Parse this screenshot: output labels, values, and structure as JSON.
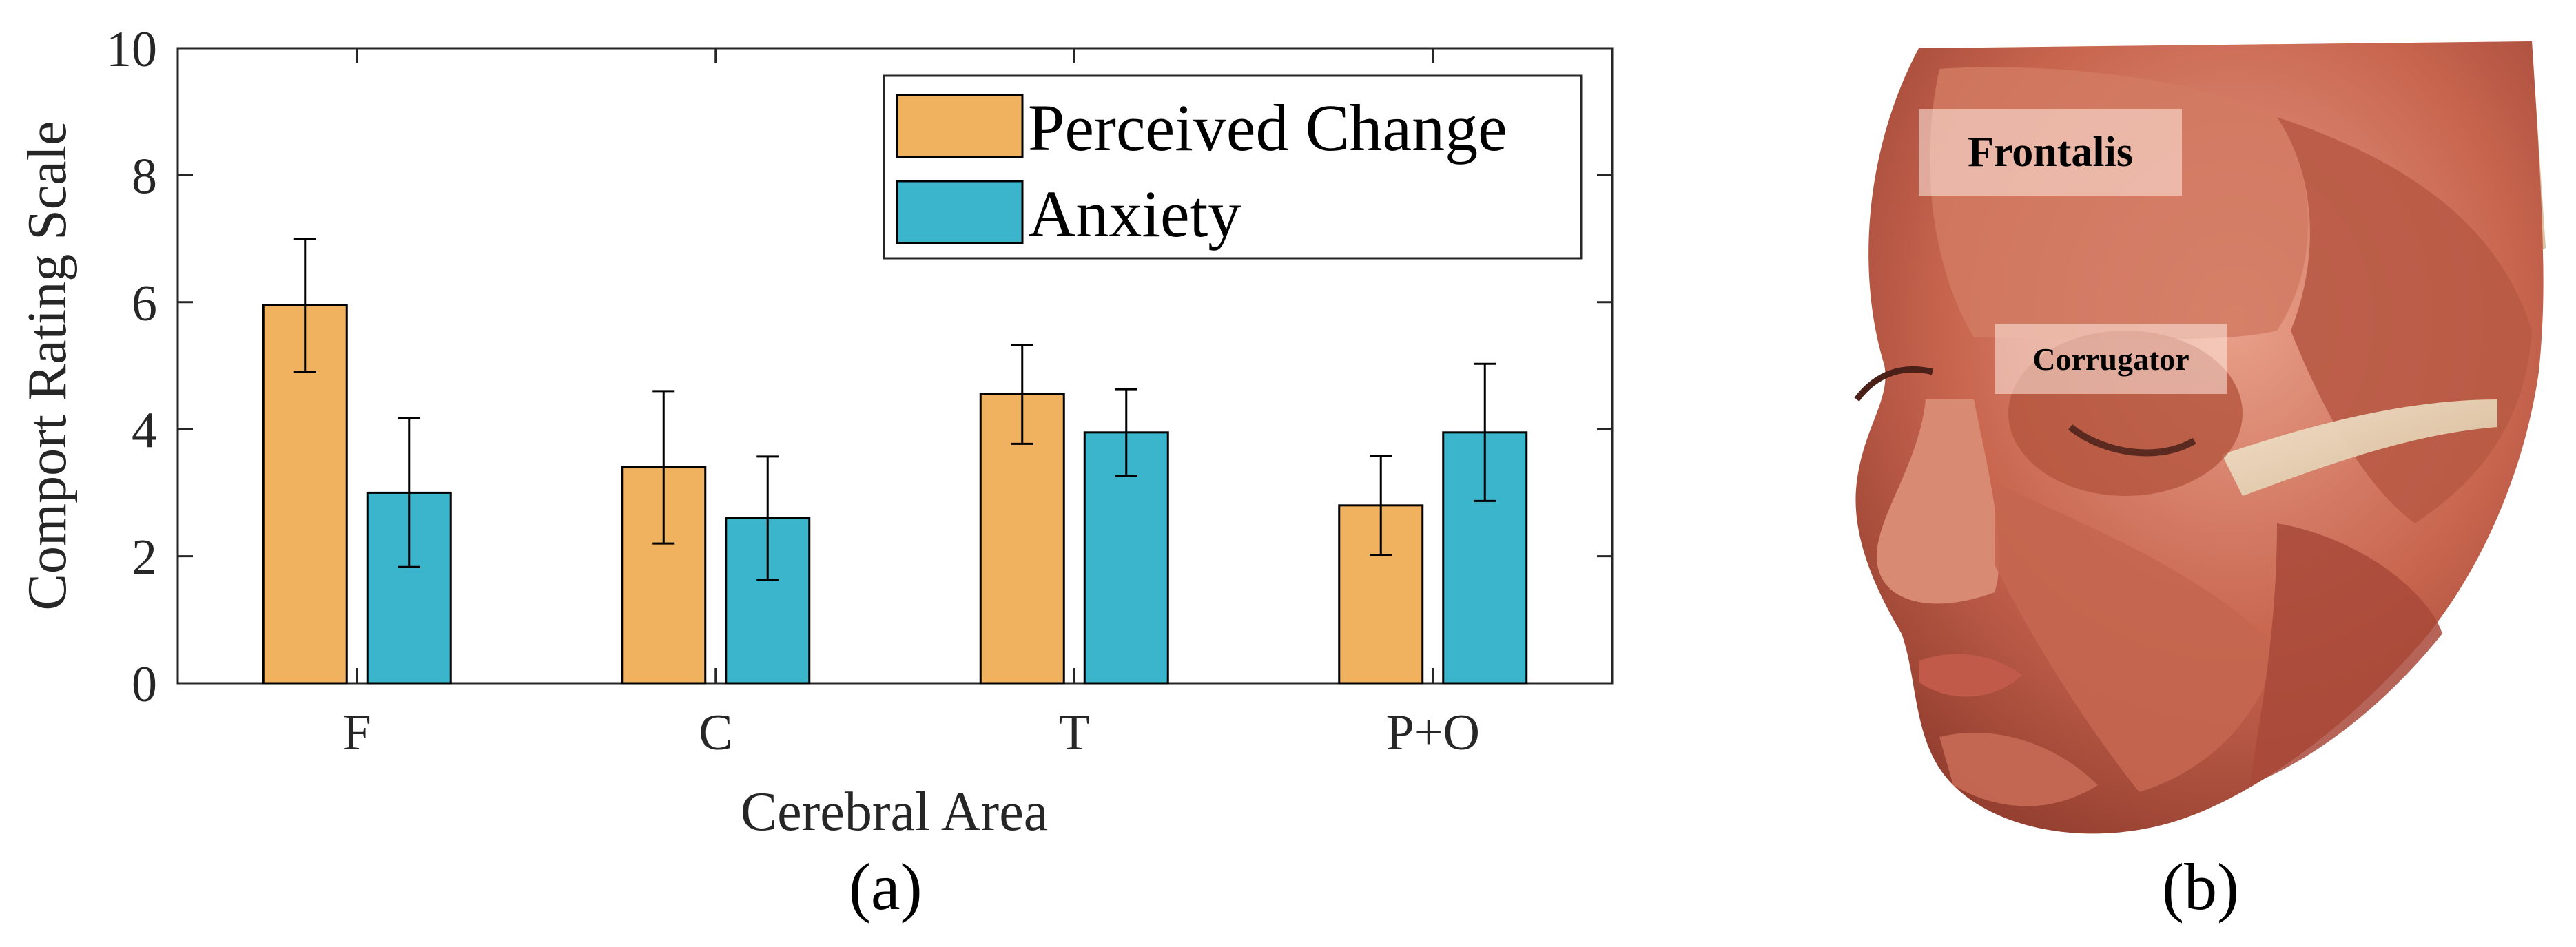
{
  "chart_data": {
    "type": "bar",
    "categories": [
      "F",
      "C",
      "T",
      "P+O"
    ],
    "series": [
      {
        "name": "Perceived Change",
        "values": [
          5.95,
          3.4,
          4.55,
          2.8
        ],
        "errors": [
          1.05,
          1.2,
          0.78,
          0.78
        ],
        "color": "#F0B25E"
      },
      {
        "name": "Anxiety",
        "values": [
          3.0,
          2.6,
          3.95,
          3.95
        ],
        "errors": [
          1.17,
          0.97,
          0.68,
          1.08
        ],
        "color": "#3AB5CC"
      }
    ],
    "xlabel": "Cerebral Area",
    "ylabel": "Comport Rating Scale",
    "ylim": [
      0,
      10
    ],
    "yticks": [
      "0",
      "2",
      "4",
      "6",
      "8",
      "10"
    ],
    "grid": false,
    "legend_placement": "top-right"
  },
  "panels": {
    "a_label": "(a)",
    "b_label": "(b)"
  },
  "face_illustration": {
    "labels": {
      "frontalis": "Frontalis",
      "corrugator": "Corrugator"
    },
    "colors": {
      "muscle": "#C8654F",
      "muscle_light": "#E8A08A",
      "tendon": "#E9D3B8"
    }
  }
}
